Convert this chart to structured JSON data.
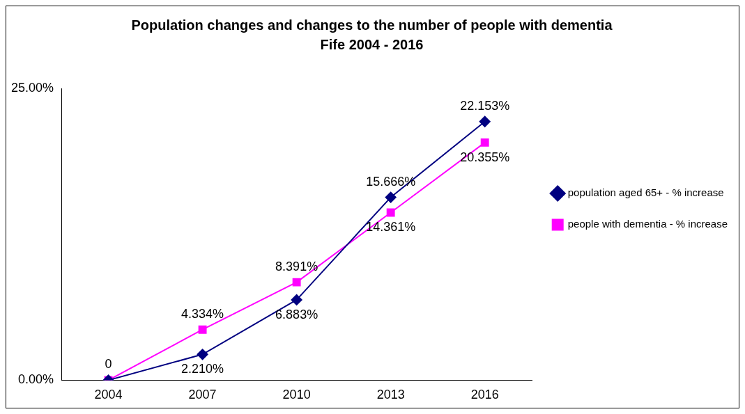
{
  "chart_data": {
    "type": "line",
    "title": "Population changes and changes to the number of people with dementia",
    "subtitle": "Fife 2004 - 2016",
    "categories": [
      "2004",
      "2007",
      "2010",
      "2013",
      "2016"
    ],
    "series": [
      {
        "name": "population aged 65+ - % increase",
        "color": "#000080",
        "marker": "diamond",
        "values": [
          0,
          2.21,
          6.883,
          15.666,
          22.153
        ],
        "value_labels": [
          "0",
          "2.210%",
          "6.883%",
          "15.666%",
          "22.153%"
        ]
      },
      {
        "name": "people with dementia - % increase",
        "color": "#ff00ff",
        "marker": "square",
        "values": [
          0,
          4.334,
          8.391,
          14.361,
          20.355
        ],
        "value_labels": [
          null,
          "4.334%",
          "8.391%",
          "14.361%",
          "20.355%"
        ]
      }
    ],
    "ylim": [
      0,
      25
    ],
    "yticks": [
      {
        "value": 0,
        "label": "0.00%"
      },
      {
        "value": 25,
        "label": "25.00%"
      }
    ],
    "grid": false,
    "legend": "right"
  }
}
